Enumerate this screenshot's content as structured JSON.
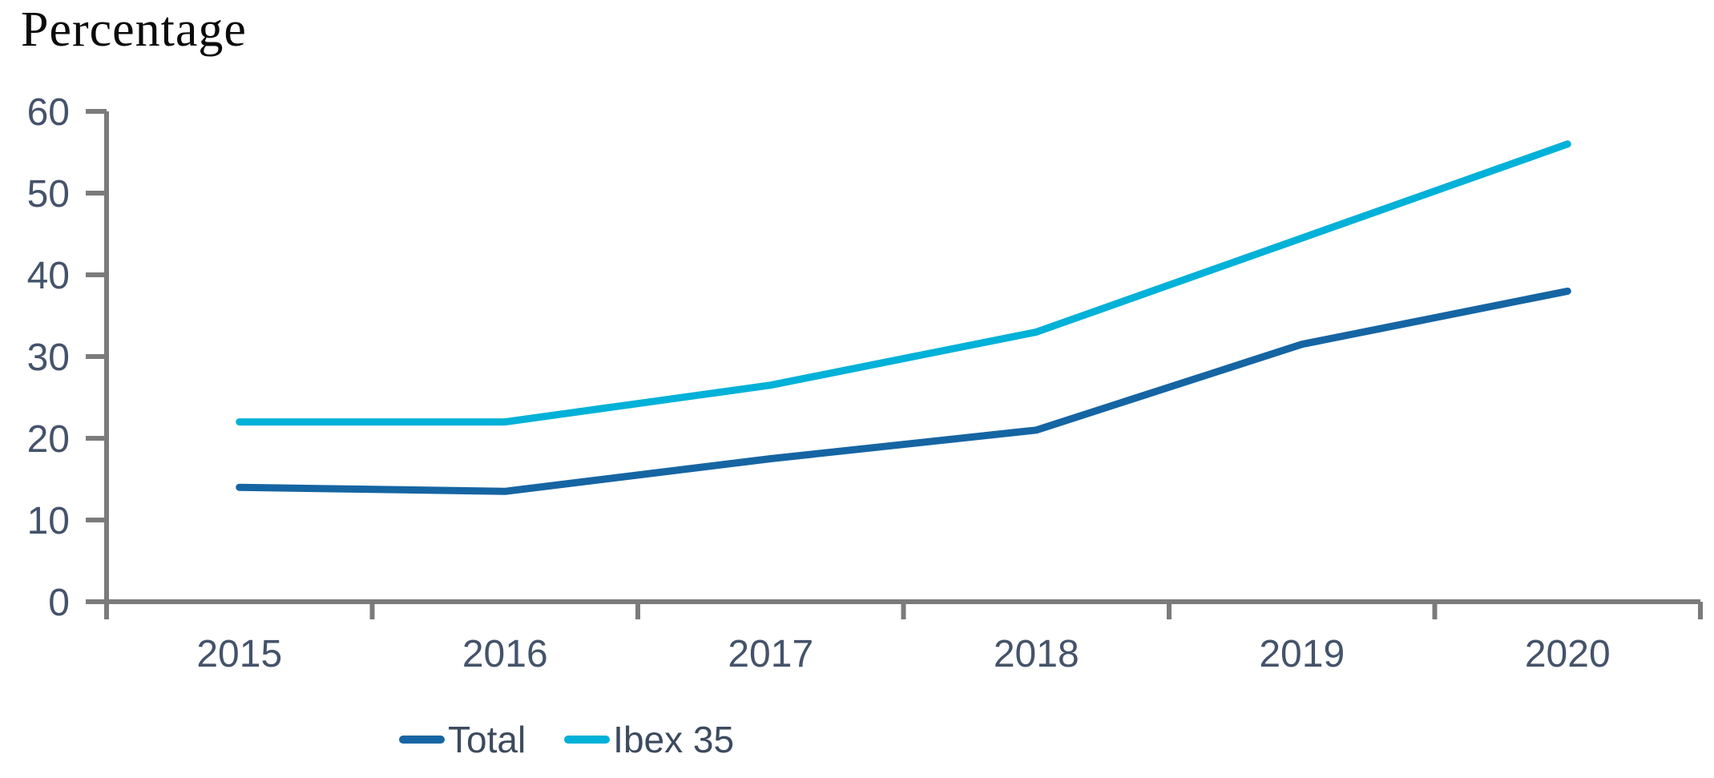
{
  "page": {
    "background": "#ffffff"
  },
  "chart_data": {
    "type": "line",
    "title": "Percentage",
    "categories": [
      "2015",
      "2016",
      "2017",
      "2018",
      "2019",
      "2020"
    ],
    "series": [
      {
        "name": "Total",
        "color": "#1565a3",
        "values": [
          14,
          13.5,
          17.5,
          21,
          31.5,
          38
        ]
      },
      {
        "name": "Ibex 35",
        "color": "#00b1d8",
        "values": [
          22,
          22,
          26.5,
          33,
          44.5,
          56
        ]
      }
    ],
    "xlabel": "",
    "ylabel": "Percentage",
    "ylim": [
      0,
      60
    ],
    "yticks": [
      0,
      10,
      20,
      30,
      40,
      50,
      60
    ],
    "grid": false,
    "legend_position": "bottom",
    "axis_color": "#7b7b7b",
    "tick_label_color": "#44536a",
    "line_width": 9
  }
}
